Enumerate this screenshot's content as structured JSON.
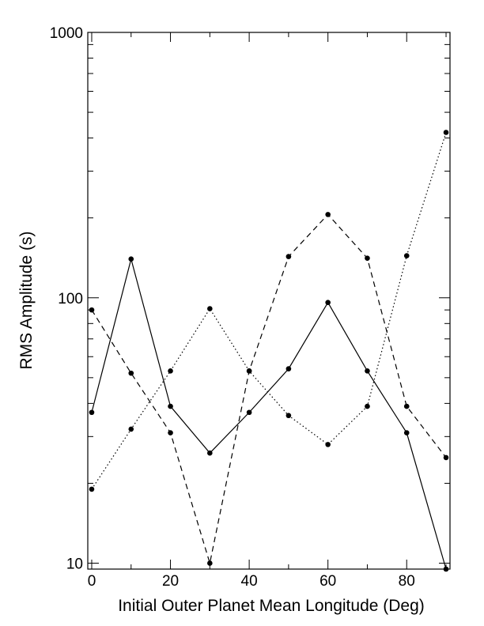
{
  "chart_data": {
    "type": "line",
    "title": "",
    "xlabel": "Initial Outer Planet Mean Longitude (Deg)",
    "ylabel": "RMS Amplitude (s)",
    "xlim": [
      -1,
      91
    ],
    "ylim": [
      9.5,
      1000
    ],
    "yscale": "log",
    "grid": false,
    "x_ticks": [
      0,
      20,
      40,
      60,
      80
    ],
    "x_tick_labels": [
      "0",
      "20",
      "40",
      "60",
      "80"
    ],
    "y_ticks": [
      10,
      100,
      1000
    ],
    "y_tick_labels": [
      "10",
      "100",
      "1000"
    ],
    "x": [
      0,
      10,
      20,
      30,
      40,
      50,
      60,
      70,
      80,
      90
    ],
    "series": [
      {
        "style": "solid",
        "values": [
          37,
          140,
          39,
          26,
          37,
          54,
          96,
          53,
          31,
          9.5
        ]
      },
      {
        "style": "dashed",
        "values": [
          90,
          52,
          31,
          10,
          53,
          143,
          206,
          141,
          39,
          25
        ]
      },
      {
        "style": "dotted",
        "values": [
          19,
          32,
          53,
          91,
          53,
          36,
          28,
          39,
          144,
          420
        ]
      }
    ]
  }
}
